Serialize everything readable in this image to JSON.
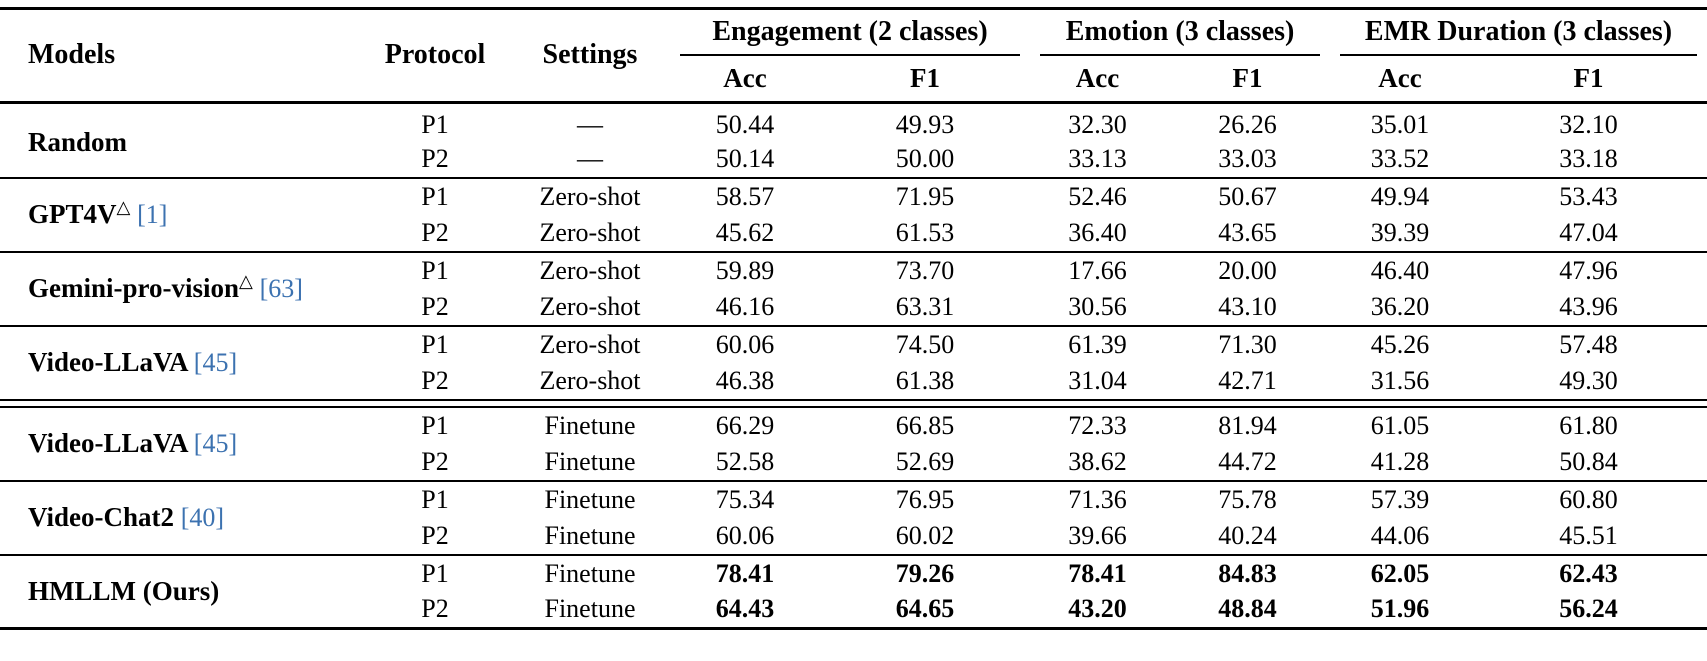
{
  "page": {
    "background": "#ffffff",
    "text_color": "#000000",
    "citation_link_color": "#3c72b0"
  },
  "table": {
    "headers": {
      "models": "Models",
      "protocol": "Protocol",
      "settings": "Settings",
      "acc": "Acc",
      "f1": "F1",
      "groups": [
        "Engagement (2 classes)",
        "Emotion (3 classes)",
        "EMR Duration (3 classes)"
      ]
    },
    "model_groups": [
      {
        "model": "Random",
        "sup": "",
        "cite": "",
        "bold_values": false,
        "separator_before": "none",
        "rows": [
          {
            "protocol": "P1",
            "setting": "—",
            "values": [
              "50.44",
              "49.93",
              "32.30",
              "26.26",
              "35.01",
              "32.10"
            ]
          },
          {
            "protocol": "P2",
            "setting": "—",
            "values": [
              "50.14",
              "50.00",
              "33.13",
              "33.03",
              "33.52",
              "33.18"
            ]
          }
        ]
      },
      {
        "model": "GPT4V",
        "sup": "△",
        "cite": "[1]",
        "bold_values": false,
        "separator_before": "single",
        "rows": [
          {
            "protocol": "P1",
            "setting": "Zero-shot",
            "values": [
              "58.57",
              "71.95",
              "52.46",
              "50.67",
              "49.94",
              "53.43"
            ]
          },
          {
            "protocol": "P2",
            "setting": "Zero-shot",
            "values": [
              "45.62",
              "61.53",
              "36.40",
              "43.65",
              "39.39",
              "47.04"
            ]
          }
        ]
      },
      {
        "model": "Gemini-pro-vision",
        "sup": "△",
        "cite": "[63]",
        "bold_values": false,
        "separator_before": "single",
        "rows": [
          {
            "protocol": "P1",
            "setting": "Zero-shot",
            "values": [
              "59.89",
              "73.70",
              "17.66",
              "20.00",
              "46.40",
              "47.96"
            ]
          },
          {
            "protocol": "P2",
            "setting": "Zero-shot",
            "values": [
              "46.16",
              "63.31",
              "30.56",
              "43.10",
              "36.20",
              "43.96"
            ]
          }
        ]
      },
      {
        "model": "Video-LLaVA",
        "sup": "",
        "cite": "[45]",
        "bold_values": false,
        "separator_before": "single",
        "rows": [
          {
            "protocol": "P1",
            "setting": "Zero-shot",
            "values": [
              "60.06",
              "74.50",
              "61.39",
              "71.30",
              "45.26",
              "57.48"
            ]
          },
          {
            "protocol": "P2",
            "setting": "Zero-shot",
            "values": [
              "46.38",
              "61.38",
              "31.04",
              "42.71",
              "31.56",
              "49.30"
            ]
          }
        ]
      },
      {
        "model": "Video-LLaVA",
        "sup": "",
        "cite": "[45]",
        "bold_values": false,
        "separator_before": "double",
        "rows": [
          {
            "protocol": "P1",
            "setting": "Finetune",
            "values": [
              "66.29",
              "66.85",
              "72.33",
              "81.94",
              "61.05",
              "61.80"
            ]
          },
          {
            "protocol": "P2",
            "setting": "Finetune",
            "values": [
              "52.58",
              "52.69",
              "38.62",
              "44.72",
              "41.28",
              "50.84"
            ]
          }
        ]
      },
      {
        "model": "Video-Chat2",
        "sup": "",
        "cite": "[40]",
        "bold_values": false,
        "separator_before": "single",
        "rows": [
          {
            "protocol": "P1",
            "setting": "Finetune",
            "values": [
              "75.34",
              "76.95",
              "71.36",
              "75.78",
              "57.39",
              "60.80"
            ]
          },
          {
            "protocol": "P2",
            "setting": "Finetune",
            "values": [
              "60.06",
              "60.02",
              "39.66",
              "40.24",
              "44.06",
              "45.51"
            ]
          }
        ]
      },
      {
        "model": "HMLLM (Ours)",
        "sup": "",
        "cite": "",
        "bold_values": true,
        "separator_before": "single",
        "rows": [
          {
            "protocol": "P1",
            "setting": "Finetune",
            "values": [
              "78.41",
              "79.26",
              "78.41",
              "84.83",
              "62.05",
              "62.43"
            ]
          },
          {
            "protocol": "P2",
            "setting": "Finetune",
            "values": [
              "64.43",
              "64.65",
              "43.20",
              "48.84",
              "51.96",
              "56.24"
            ]
          }
        ]
      }
    ]
  }
}
